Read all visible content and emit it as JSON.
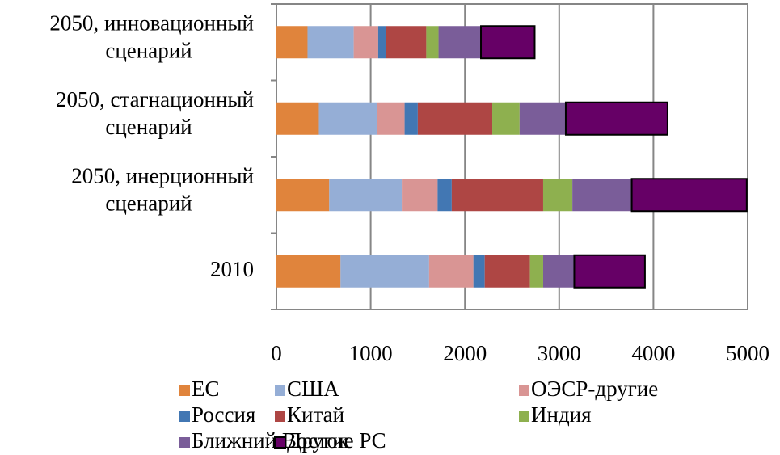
{
  "chart_data": {
    "type": "stacked-barh",
    "categories": [
      [
        "2050, инновационный",
        "сценарий"
      ],
      [
        "2050, стагнационный",
        "сценарий"
      ],
      [
        "2050, инерционный",
        "сценарий"
      ],
      [
        "2010"
      ]
    ],
    "series": [
      {
        "name": "ЕС",
        "color": "#e0843c",
        "values": [
          330,
          450,
          560,
          680
        ]
      },
      {
        "name": "США",
        "color": "#95aed6",
        "values": [
          490,
          620,
          770,
          940
        ]
      },
      {
        "name": "ОЭСР-другие",
        "color": "#d99594",
        "values": [
          260,
          290,
          380,
          470
        ]
      },
      {
        "name": "Россия",
        "color": "#4277b3",
        "values": [
          80,
          140,
          150,
          120
        ]
      },
      {
        "name": "Китай",
        "color": "#ae4644",
        "values": [
          430,
          790,
          970,
          480
        ]
      },
      {
        "name": "Индия",
        "color": "#8eb04f",
        "values": [
          130,
          290,
          310,
          140
        ]
      },
      {
        "name": "Ближний Восток",
        "color": "#7a5d99",
        "values": [
          450,
          490,
          630,
          330
        ]
      },
      {
        "name": "Другие РС",
        "color": "#660066",
        "outline": "#000000",
        "values": [
          570,
          1080,
          1220,
          750
        ]
      }
    ],
    "xlim": [
      0,
      5000
    ],
    "xticks": [
      0,
      1000,
      2000,
      3000,
      4000,
      5000
    ],
    "grid": true
  }
}
